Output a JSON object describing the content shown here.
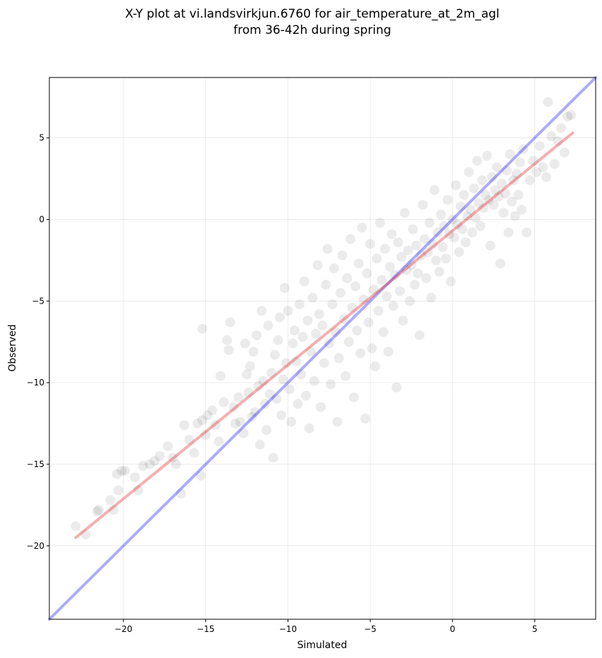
{
  "chart_data": {
    "type": "scatter",
    "title": "X-Y plot at vi.landsvirkjun.6760 for air_temperature_at_2m_agl",
    "subtitle": "from 36-42h during spring",
    "xlabel": "Simulated",
    "ylabel": "Observed",
    "xlim": [
      -24.5,
      8.7
    ],
    "ylim": [
      -24.5,
      8.7
    ],
    "xticks": [
      -20,
      -15,
      -10,
      -5,
      0,
      5
    ],
    "yticks": [
      -20,
      -15,
      -10,
      -5,
      0,
      5
    ],
    "xtick_labels": [
      "−20",
      "−15",
      "−10",
      "−5",
      "0",
      "5"
    ],
    "ytick_labels": [
      "−20",
      "−15",
      "−10",
      "−5",
      "0",
      "5"
    ],
    "grid": true,
    "point_color": "#000000",
    "point_opacity": 0.08,
    "lines": [
      {
        "color": "#0000ff",
        "opacity": 0.33,
        "x": [
          -24.5,
          8.7
        ],
        "y": [
          -24.5,
          8.7
        ]
      },
      {
        "color": "#e31a1c",
        "opacity": 0.35,
        "x": [
          -22.9,
          7.3
        ],
        "y": [
          -19.5,
          5.3
        ]
      }
    ],
    "points": [
      [
        -22.9,
        -18.8
      ],
      [
        -22.3,
        -19.3
      ],
      [
        -21.5,
        -17.8
      ],
      [
        -21.6,
        -17.9
      ],
      [
        -20.8,
        -17.2
      ],
      [
        -20.6,
        -17.8
      ],
      [
        -20.3,
        -16.6
      ],
      [
        -20.1,
        -15.4
      ],
      [
        -19.9,
        -15.4
      ],
      [
        -20.4,
        -15.6
      ],
      [
        -19.3,
        -15.8
      ],
      [
        -19.1,
        -16.6
      ],
      [
        -18.8,
        -15.1
      ],
      [
        -18.4,
        -15.0
      ],
      [
        -18.1,
        -14.8
      ],
      [
        -17.8,
        -14.5
      ],
      [
        -17.3,
        -13.9
      ],
      [
        -17.0,
        -14.6
      ],
      [
        -16.8,
        -15.0
      ],
      [
        -16.5,
        -16.8
      ],
      [
        -16.3,
        -12.6
      ],
      [
        -16.0,
        -13.5
      ],
      [
        -15.7,
        -14.3
      ],
      [
        -15.5,
        -12.5
      ],
      [
        -15.2,
        -12.3
      ],
      [
        -15.0,
        -13.2
      ],
      [
        -15.3,
        -15.7
      ],
      [
        -15.2,
        -6.7
      ],
      [
        -14.9,
        -12.0
      ],
      [
        -14.6,
        -11.7
      ],
      [
        -14.4,
        -12.6
      ],
      [
        -14.2,
        -13.6
      ],
      [
        -14.1,
        -9.6
      ],
      [
        -13.9,
        -11.2
      ],
      [
        -13.7,
        -7.4
      ],
      [
        -13.6,
        -8.0
      ],
      [
        -13.5,
        -6.3
      ],
      [
        -13.3,
        -11.5
      ],
      [
        -13.2,
        -12.5
      ],
      [
        -13.0,
        -10.9
      ],
      [
        -12.9,
        -12.4
      ],
      [
        -12.7,
        -13.1
      ],
      [
        -12.6,
        -7.6
      ],
      [
        -12.5,
        -9.5
      ],
      [
        -12.4,
        -10.6
      ],
      [
        -12.3,
        -9.0
      ],
      [
        -12.2,
        -12.1
      ],
      [
        -12.1,
        -8.1
      ],
      [
        -12.0,
        -11.8
      ],
      [
        -11.9,
        -7.1
      ],
      [
        -11.8,
        -10.2
      ],
      [
        -11.7,
        -13.8
      ],
      [
        -11.6,
        -5.6
      ],
      [
        -11.5,
        -9.9
      ],
      [
        -11.4,
        -11.3
      ],
      [
        -11.3,
        -12.9
      ],
      [
        -11.2,
        -6.5
      ],
      [
        -11.1,
        -10.7
      ],
      [
        -11.0,
        -9.4
      ],
      [
        -10.9,
        -14.6
      ],
      [
        -10.8,
        -8.3
      ],
      [
        -10.7,
        -11.0
      ],
      [
        -10.6,
        -7.4
      ],
      [
        -10.5,
        -6.0
      ],
      [
        -10.4,
        -12.0
      ],
      [
        -10.3,
        -9.8
      ],
      [
        -10.2,
        -4.2
      ],
      [
        -10.1,
        -8.8
      ],
      [
        -10.0,
        -5.6
      ],
      [
        -9.9,
        -10.4
      ],
      [
        -9.8,
        -12.4
      ],
      [
        -9.7,
        -7.6
      ],
      [
        -9.6,
        -6.8
      ],
      [
        -9.5,
        -8.7
      ],
      [
        -9.4,
        -11.3
      ],
      [
        -9.3,
        -5.2
      ],
      [
        -9.2,
        -9.5
      ],
      [
        -9.1,
        -7.2
      ],
      [
        -9.0,
        -3.8
      ],
      [
        -8.9,
        -10.8
      ],
      [
        -8.8,
        -6.2
      ],
      [
        -8.7,
        -12.8
      ],
      [
        -8.6,
        -8.1
      ],
      [
        -8.5,
        -4.8
      ],
      [
        -8.4,
        -9.9
      ],
      [
        -8.3,
        -7.0
      ],
      [
        -8.2,
        -2.8
      ],
      [
        -8.1,
        -5.8
      ],
      [
        -8.0,
        -11.5
      ],
      [
        -7.9,
        -6.5
      ],
      [
        -7.8,
        -8.8
      ],
      [
        -7.7,
        -4.0
      ],
      [
        -7.6,
        -1.8
      ],
      [
        -7.5,
        -7.6
      ],
      [
        -7.4,
        -10.1
      ],
      [
        -7.3,
        -5.2
      ],
      [
        -7.2,
        -3.0
      ],
      [
        -7.1,
        -6.9
      ],
      [
        -7.0,
        -12.4
      ],
      [
        -6.9,
        -8.5
      ],
      [
        -6.8,
        -4.5
      ],
      [
        -6.7,
        -2.2
      ],
      [
        -6.6,
        -6.1
      ],
      [
        -6.5,
        -9.6
      ],
      [
        -6.4,
        -3.6
      ],
      [
        -6.3,
        -7.5
      ],
      [
        -6.2,
        -1.2
      ],
      [
        -6.1,
        -5.4
      ],
      [
        -6.0,
        -10.9
      ],
      [
        -5.9,
        -4.1
      ],
      [
        -5.8,
        -6.8
      ],
      [
        -5.7,
        -2.7
      ],
      [
        -5.6,
        -8.2
      ],
      [
        -5.5,
        -0.5
      ],
      [
        -5.4,
        -4.9
      ],
      [
        -5.3,
        -12.2
      ],
      [
        -5.2,
        -3.3
      ],
      [
        -5.1,
        -6.3
      ],
      [
        -5.0,
        -1.5
      ],
      [
        -4.9,
        -7.9
      ],
      [
        -4.8,
        -4.3
      ],
      [
        -4.7,
        -9.0
      ],
      [
        -4.6,
        -2.4
      ],
      [
        -4.5,
        -5.6
      ],
      [
        -4.4,
        -0.2
      ],
      [
        -4.3,
        -3.7
      ],
      [
        -4.2,
        -6.9
      ],
      [
        -4.1,
        -1.8
      ],
      [
        -4.0,
        -4.7
      ],
      [
        -3.9,
        -8.1
      ],
      [
        -3.8,
        -2.9
      ],
      [
        -3.7,
        -0.9
      ],
      [
        -3.6,
        -5.3
      ],
      [
        -3.5,
        -3.4
      ],
      [
        -3.4,
        -10.3
      ],
      [
        -3.3,
        -1.4
      ],
      [
        -3.2,
        -4.4
      ],
      [
        -3.1,
        -2.3
      ],
      [
        -3.0,
        -6.2
      ],
      [
        -2.9,
        0.4
      ],
      [
        -2.8,
        -3.1
      ],
      [
        -2.7,
        -1.9
      ],
      [
        -2.6,
        -5.0
      ],
      [
        -2.5,
        -2.8
      ],
      [
        -2.4,
        -0.6
      ],
      [
        -2.3,
        -4.0
      ],
      [
        -2.2,
        -1.6
      ],
      [
        -2.1,
        -3.3
      ],
      [
        -2.0,
        -7.1
      ],
      [
        -1.9,
        -2.2
      ],
      [
        -1.8,
        0.9
      ],
      [
        -1.7,
        -1.2
      ],
      [
        -1.6,
        -3.6
      ],
      [
        -1.5,
        -2.0
      ],
      [
        -1.4,
        -0.2
      ],
      [
        -1.3,
        -4.8
      ],
      [
        -1.2,
        -1.5
      ],
      [
        -1.1,
        1.8
      ],
      [
        -1.0,
        -2.5
      ],
      [
        -0.9,
        -0.8
      ],
      [
        -0.8,
        -3.2
      ],
      [
        -0.7,
        0.3
      ],
      [
        -0.6,
        -1.7
      ],
      [
        -0.5,
        -0.4
      ],
      [
        -0.4,
        -2.4
      ],
      [
        -0.3,
        1.2
      ],
      [
        -0.2,
        -0.9
      ],
      [
        -0.1,
        -3.8
      ],
      [
        0.0,
        0.0
      ],
      [
        0.1,
        -1.1
      ],
      [
        0.2,
        2.1
      ],
      [
        0.3,
        -0.3
      ],
      [
        0.4,
        -2.0
      ],
      [
        0.5,
        0.8
      ],
      [
        0.6,
        -0.6
      ],
      [
        0.7,
        1.5
      ],
      [
        0.8,
        -1.4
      ],
      [
        0.9,
        0.2
      ],
      [
        1.0,
        2.9
      ],
      [
        1.1,
        0.6
      ],
      [
        1.2,
        -0.8
      ],
      [
        1.3,
        1.9
      ],
      [
        1.4,
        0.1
      ],
      [
        1.5,
        3.6
      ],
      [
        1.6,
        1.0
      ],
      [
        1.7,
        -0.4
      ],
      [
        1.8,
        2.4
      ],
      [
        1.9,
        0.7
      ],
      [
        2.0,
        1.5
      ],
      [
        2.1,
        3.9
      ],
      [
        2.2,
        1.2
      ],
      [
        2.3,
        -1.6
      ],
      [
        2.4,
        2.6
      ],
      [
        2.5,
        0.9
      ],
      [
        2.6,
        1.8
      ],
      [
        2.7,
        3.2
      ],
      [
        2.8,
        1.4
      ],
      [
        2.9,
        -2.7
      ],
      [
        3.0,
        2.2
      ],
      [
        3.1,
        0.4
      ],
      [
        3.2,
        1.6
      ],
      [
        3.3,
        3.0
      ],
      [
        3.4,
        -0.8
      ],
      [
        3.5,
        4.0
      ],
      [
        3.6,
        1.1
      ],
      [
        3.7,
        2.4
      ],
      [
        3.8,
        0.2
      ],
      [
        3.9,
        2.8
      ],
      [
        4.0,
        1.5
      ],
      [
        4.1,
        3.5
      ],
      [
        4.2,
        0.6
      ],
      [
        4.3,
        4.3
      ],
      [
        4.5,
        -0.8
      ],
      [
        4.7,
        2.4
      ],
      [
        4.9,
        3.6
      ],
      [
        5.1,
        2.9
      ],
      [
        5.3,
        4.5
      ],
      [
        5.5,
        3.2
      ],
      [
        5.7,
        2.6
      ],
      [
        5.8,
        7.2
      ],
      [
        6.0,
        5.1
      ],
      [
        6.2,
        3.4
      ],
      [
        6.4,
        4.8
      ],
      [
        6.6,
        5.6
      ],
      [
        6.8,
        4.1
      ],
      [
        7.0,
        6.3
      ],
      [
        7.2,
        6.4
      ]
    ]
  }
}
